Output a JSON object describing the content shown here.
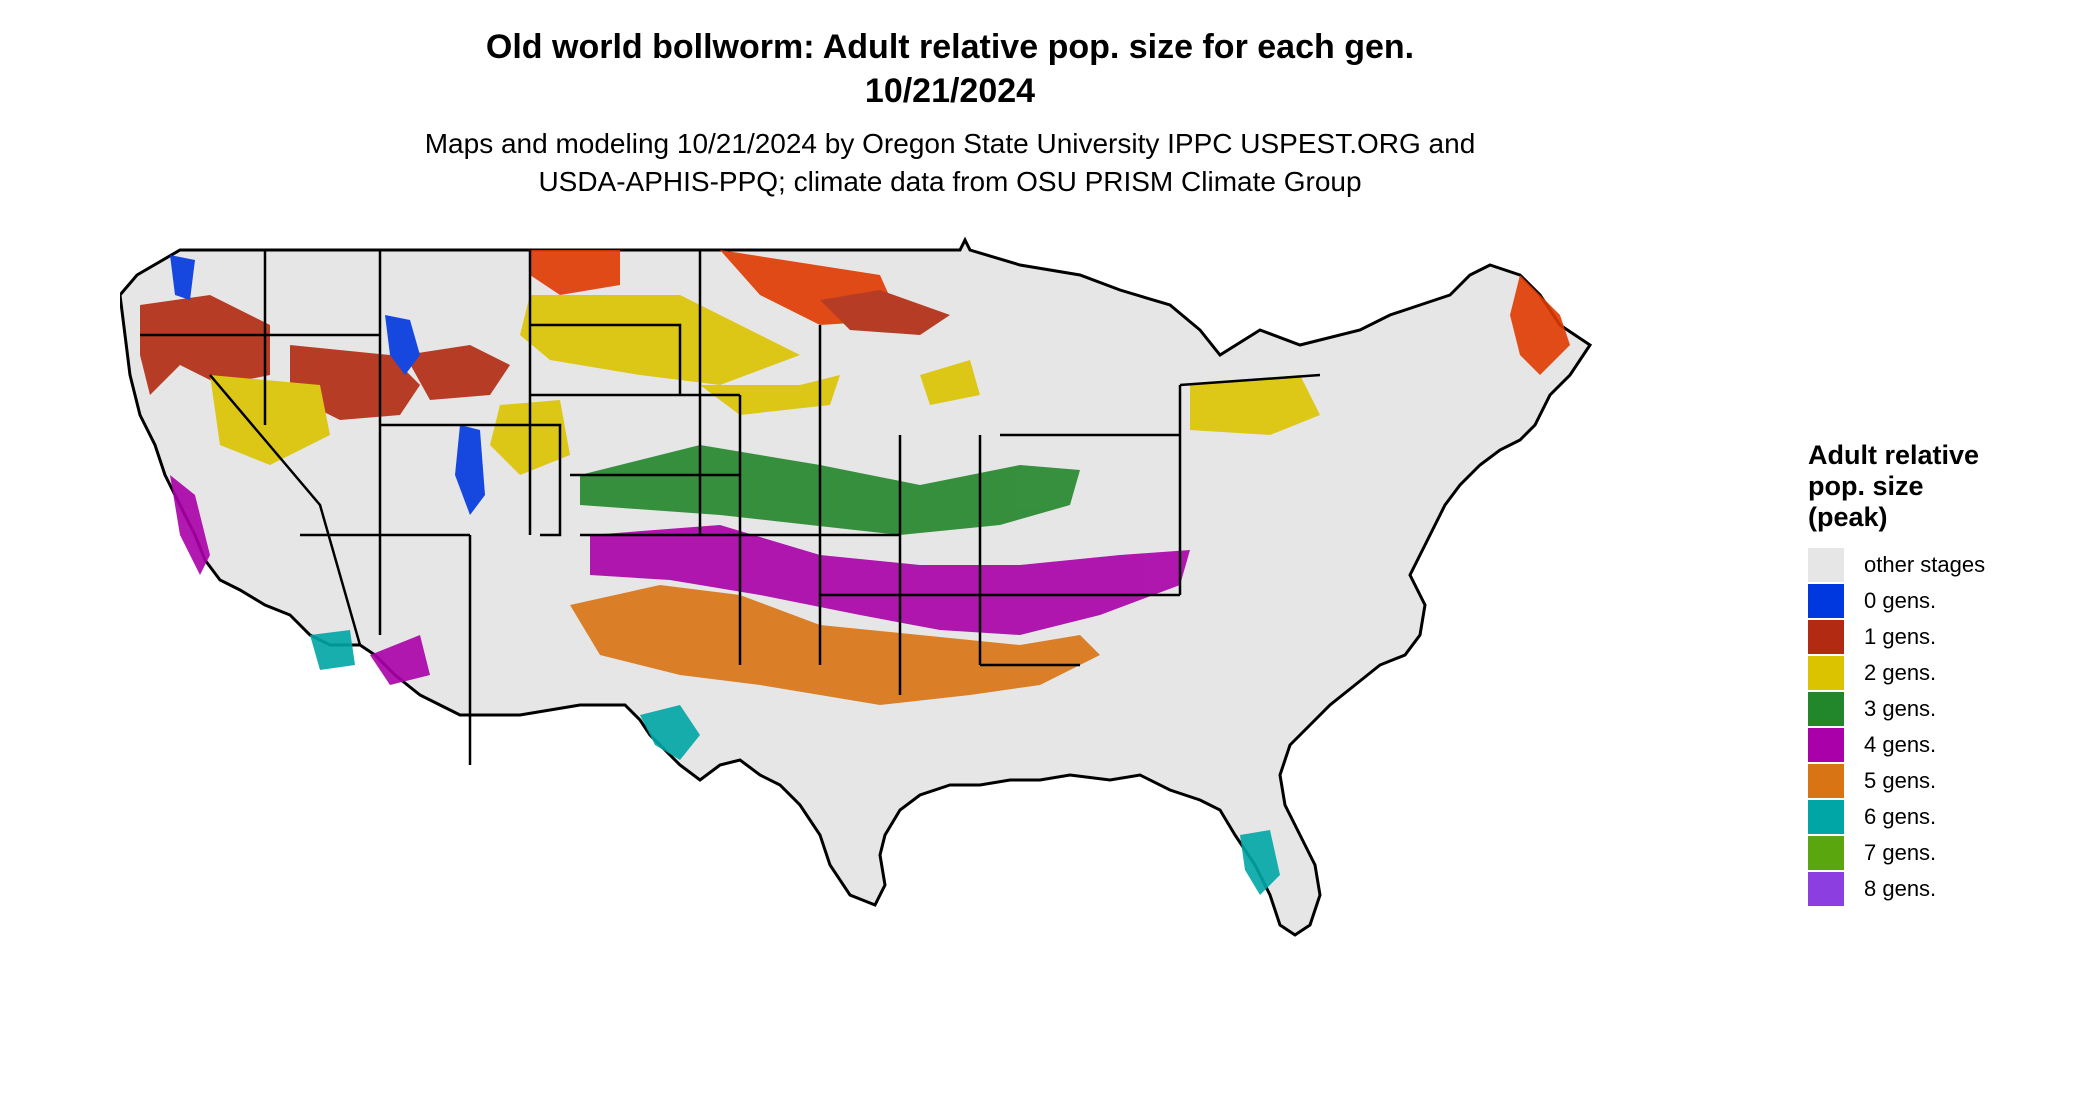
{
  "title_line1": "Old world bollworm: Adult relative pop. size for each gen.",
  "title_line2": "10/21/2024",
  "subtitle_line1": "Maps and modeling 10/21/2024 by Oregon State University IPPC USPEST.ORG and",
  "subtitle_line2": "USDA-APHIS-PPQ; climate data from OSU PRISM Climate Group",
  "legend": {
    "title_lines": [
      "Adult relative",
      "pop. size",
      "(peak)"
    ],
    "items": [
      {
        "label": "other stages",
        "color": "#e6e6e6"
      },
      {
        "label": "0 gens.",
        "color": "#0038e0"
      },
      {
        "label": "1 gens.",
        "color": "#b22a12"
      },
      {
        "label": "2 gens.",
        "color": "#dcc300"
      },
      {
        "label": "3 gens.",
        "color": "#22862a"
      },
      {
        "label": "4 gens.",
        "color": "#a900a9"
      },
      {
        "label": "5 gens.",
        "color": "#d97414"
      },
      {
        "label": "6 gens.",
        "color": "#00a6a6"
      },
      {
        "label": "7 gens.",
        "color": "#5aa60f"
      },
      {
        "label": "8 gens.",
        "color": "#8c3ee0"
      }
    ]
  }
}
